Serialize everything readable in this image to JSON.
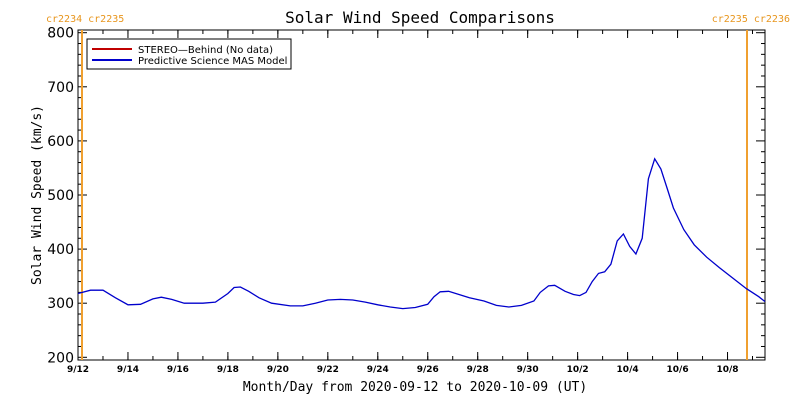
{
  "colors": {
    "stereo_line": "#c00000",
    "model_line": "#0000cc",
    "cr_marker": "#f0a030",
    "cr_label": "#e8961e"
  },
  "chart_data": {
    "type": "line",
    "title": "Solar Wind Speed Comparisons",
    "xlabel": "Month/Day from 2020-09-12 to 2020-10-09 (UT)",
    "ylabel": "Solar Wind Speed (km/s)",
    "xlim": [
      "2020-09-12",
      "2020-10-09T12:00"
    ],
    "ylim": [
      195,
      805
    ],
    "x_tick_labels": [
      {
        "date": "2020-09-12",
        "label": "9/12"
      },
      {
        "date": "2020-09-14",
        "label": "9/14"
      },
      {
        "date": "2020-09-16",
        "label": "9/16"
      },
      {
        "date": "2020-09-18",
        "label": "9/18"
      },
      {
        "date": "2020-09-20",
        "label": "9/20"
      },
      {
        "date": "2020-09-22",
        "label": "9/22"
      },
      {
        "date": "2020-09-24",
        "label": "9/24"
      },
      {
        "date": "2020-09-26",
        "label": "9/26"
      },
      {
        "date": "2020-09-28",
        "label": "9/28"
      },
      {
        "date": "2020-09-30",
        "label": "9/30"
      },
      {
        "date": "2020-10-02",
        "label": "10/2"
      },
      {
        "date": "2020-10-04",
        "label": "10/4"
      },
      {
        "date": "2020-10-06",
        "label": "10/6"
      },
      {
        "date": "2020-10-08",
        "label": "10/8"
      }
    ],
    "y_ticks": [
      200,
      300,
      400,
      500,
      600,
      700,
      800
    ],
    "legend": {
      "placement": "top-left",
      "entries": [
        {
          "label": "STEREO—Behind (No data)",
          "color": "#c00000"
        },
        {
          "label": "Predictive Science MAS Model",
          "color": "#0000cc"
        }
      ]
    },
    "carrington_markers": [
      {
        "date": "2020-09-12",
        "label": "cr2234 cr2235",
        "position": "left"
      },
      {
        "date": "2020-10-09T12:00",
        "label": "cr2235 cr2236",
        "position": "right"
      }
    ],
    "series": [
      {
        "name": "Predictive Science MAS Model",
        "color": "#0000cc",
        "points": [
          [
            "2020-09-12T00:00",
            318
          ],
          [
            "2020-09-12T12:00",
            324
          ],
          [
            "2020-09-13T00:00",
            324
          ],
          [
            "2020-09-13T12:00",
            310
          ],
          [
            "2020-09-14T00:00",
            297
          ],
          [
            "2020-09-14T12:00",
            298
          ],
          [
            "2020-09-15T00:00",
            308
          ],
          [
            "2020-09-15T08:00",
            311
          ],
          [
            "2020-09-15T18:00",
            307
          ],
          [
            "2020-09-16T06:00",
            300
          ],
          [
            "2020-09-17T00:00",
            300
          ],
          [
            "2020-09-17T12:00",
            302
          ],
          [
            "2020-09-18T00:00",
            318
          ],
          [
            "2020-09-18T06:00",
            329
          ],
          [
            "2020-09-18T12:00",
            330
          ],
          [
            "2020-09-18T20:00",
            322
          ],
          [
            "2020-09-19T06:00",
            310
          ],
          [
            "2020-09-19T18:00",
            300
          ],
          [
            "2020-09-20T12:00",
            295
          ],
          [
            "2020-09-21T00:00",
            295
          ],
          [
            "2020-09-21T12:00",
            300
          ],
          [
            "2020-09-22T00:00",
            306
          ],
          [
            "2020-09-22T12:00",
            307
          ],
          [
            "2020-09-23T00:00",
            306
          ],
          [
            "2020-09-23T12:00",
            302
          ],
          [
            "2020-09-24T00:00",
            297
          ],
          [
            "2020-09-24T12:00",
            293
          ],
          [
            "2020-09-25T00:00",
            290
          ],
          [
            "2020-09-25T12:00",
            292
          ],
          [
            "2020-09-26T00:00",
            298
          ],
          [
            "2020-09-26T06:00",
            312
          ],
          [
            "2020-09-26T12:00",
            321
          ],
          [
            "2020-09-26T20:00",
            322
          ],
          [
            "2020-09-27T06:00",
            316
          ],
          [
            "2020-09-27T16:00",
            310
          ],
          [
            "2020-09-28T06:00",
            304
          ],
          [
            "2020-09-28T18:00",
            296
          ],
          [
            "2020-09-29T06:00",
            293
          ],
          [
            "2020-09-29T18:00",
            296
          ],
          [
            "2020-09-30T06:00",
            304
          ],
          [
            "2020-09-30T12:00",
            320
          ],
          [
            "2020-09-30T20:00",
            332
          ],
          [
            "2020-10-01T02:00",
            333
          ],
          [
            "2020-10-01T12:00",
            322
          ],
          [
            "2020-10-01T20:00",
            316
          ],
          [
            "2020-10-02T02:00",
            314
          ],
          [
            "2020-10-02T08:00",
            320
          ],
          [
            "2020-10-02T14:00",
            340
          ],
          [
            "2020-10-02T20:00",
            355
          ],
          [
            "2020-10-03T02:00",
            358
          ],
          [
            "2020-10-03T08:00",
            372
          ],
          [
            "2020-10-03T14:00",
            415
          ],
          [
            "2020-10-03T20:00",
            428
          ],
          [
            "2020-10-04T02:00",
            405
          ],
          [
            "2020-10-04T08:00",
            391
          ],
          [
            "2020-10-04T14:00",
            420
          ],
          [
            "2020-10-04T20:00",
            530
          ],
          [
            "2020-10-05T02:00",
            567
          ],
          [
            "2020-10-05T08:00",
            548
          ],
          [
            "2020-10-05T14:00",
            512
          ],
          [
            "2020-10-05T20:00",
            476
          ],
          [
            "2020-10-06T06:00",
            436
          ],
          [
            "2020-10-06T16:00",
            408
          ],
          [
            "2020-10-07T04:00",
            385
          ],
          [
            "2020-10-07T16:00",
            366
          ],
          [
            "2020-10-08T06:00",
            345
          ],
          [
            "2020-10-08T18:00",
            327
          ],
          [
            "2020-10-09T06:00",
            312
          ],
          [
            "2020-10-09T12:00",
            303
          ]
        ]
      }
    ]
  }
}
